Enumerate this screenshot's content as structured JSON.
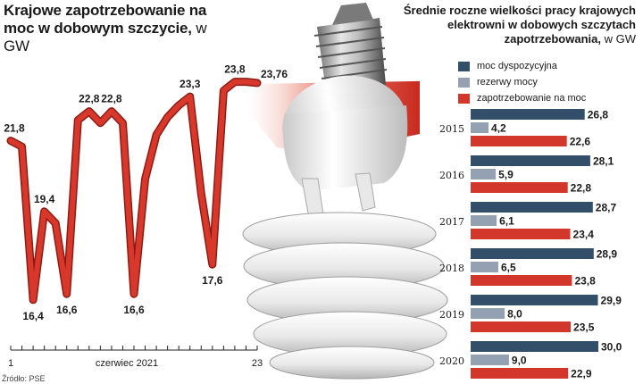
{
  "left_chart": {
    "title_bold": "Krajowe zapotrzebowanie na moc w dobowym szczycie,",
    "title_unit": " w GW",
    "axis_label_start": "1",
    "axis_label_middle": "czerwiec 2021",
    "axis_label_end": "23"
  },
  "right_chart": {
    "title_bold": "Średnie roczne wielkości pracy krajowych elektrowni w dobowych szczytach zapotrzebowania,",
    "title_unit": " w GW"
  },
  "legend": [
    {
      "label": "moc dyspozycyjna",
      "color": "#334e68"
    },
    {
      "label": "rezerwy mocy",
      "color": "#93a1b3"
    },
    {
      "label": "zapotrzebowanie na moc",
      "color": "#d3362a"
    }
  ],
  "source": "Źródło: PSE",
  "chart_data": [
    {
      "type": "line",
      "x": [
        1,
        2,
        3,
        4,
        5,
        6,
        7,
        8,
        9,
        10,
        11,
        12,
        13,
        14,
        15,
        16,
        17,
        18,
        19,
        20,
        21,
        22,
        23
      ],
      "values": [
        21.8,
        21.6,
        16.4,
        19.4,
        19.0,
        16.6,
        22.5,
        22.8,
        22.4,
        22.8,
        22.4,
        16.6,
        20.5,
        22.0,
        22.6,
        23.0,
        23.3,
        20.0,
        17.6,
        23.5,
        23.8,
        23.8,
        23.76
      ],
      "labels": [
        {
          "x": 1,
          "text": "21,8"
        },
        {
          "x": 3,
          "text": "16,4"
        },
        {
          "x": 4,
          "text": "19,4"
        },
        {
          "x": 6,
          "text": "16,6"
        },
        {
          "x": 8,
          "text": "22,8"
        },
        {
          "x": 10,
          "text": "22,8"
        },
        {
          "x": 12,
          "text": "16,6"
        },
        {
          "x": 17,
          "text": "23,3"
        },
        {
          "x": 19,
          "text": "17,6"
        },
        {
          "x": 21,
          "text": "23,8"
        },
        {
          "x": 23,
          "text": "23,76"
        }
      ],
      "ylim": [
        15,
        25
      ]
    },
    {
      "type": "bar",
      "categories": [
        "2015",
        "2016",
        "2017",
        "2018",
        "2019",
        "2020"
      ],
      "series": [
        {
          "name": "moc dyspozycyjna",
          "values": [
            26.8,
            28.1,
            28.7,
            28.9,
            29.9,
            30.0
          ],
          "labels": [
            "26,8",
            "28,1",
            "28,7",
            "28,9",
            "29,9",
            "30,0"
          ]
        },
        {
          "name": "rezerwy mocy",
          "values": [
            4.2,
            5.9,
            6.1,
            6.5,
            8.0,
            9.0
          ],
          "labels": [
            "4,2",
            "5,9",
            "6,1",
            "6,5",
            "8,0",
            "9,0"
          ]
        },
        {
          "name": "zapotrzebowanie na moc",
          "values": [
            22.6,
            22.8,
            23.4,
            23.8,
            23.5,
            22.9
          ],
          "labels": [
            "22,6",
            "22,8",
            "23,4",
            "23,8",
            "23,5",
            "22,9"
          ]
        }
      ],
      "xlim": [
        0,
        30
      ]
    }
  ]
}
